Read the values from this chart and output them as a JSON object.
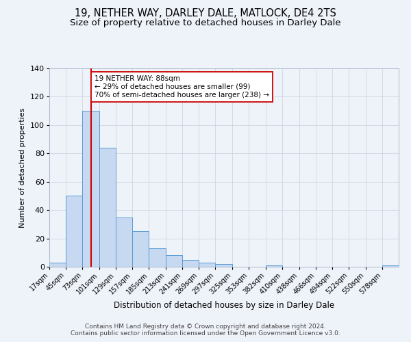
{
  "title": "19, NETHER WAY, DARLEY DALE, MATLOCK, DE4 2TS",
  "subtitle": "Size of property relative to detached houses in Darley Dale",
  "xlabel": "Distribution of detached houses by size in Darley Dale",
  "ylabel": "Number of detached properties",
  "bin_labels": [
    "17sqm",
    "45sqm",
    "73sqm",
    "101sqm",
    "129sqm",
    "157sqm",
    "185sqm",
    "213sqm",
    "241sqm",
    "269sqm",
    "297sqm",
    "325sqm",
    "353sqm",
    "382sqm",
    "410sqm",
    "438sqm",
    "466sqm",
    "494sqm",
    "522sqm",
    "550sqm",
    "578sqm"
  ],
  "bin_edges": [
    17,
    45,
    73,
    101,
    129,
    157,
    185,
    213,
    241,
    269,
    297,
    325,
    353,
    382,
    410,
    438,
    466,
    494,
    522,
    550,
    578
  ],
  "bar_heights": [
    3,
    50,
    110,
    84,
    35,
    25,
    13,
    8,
    5,
    3,
    2,
    0,
    0,
    1,
    0,
    0,
    0,
    0,
    0,
    0,
    1
  ],
  "bar_color": "#c6d9f0",
  "bar_edge_color": "#5b9bd5",
  "vline_x": 88,
  "vline_color": "#cc0000",
  "annotation_line1": "19 NETHER WAY: 88sqm",
  "annotation_line2": "← 29% of detached houses are smaller (99)",
  "annotation_line3": "70% of semi-detached houses are larger (238) →",
  "annotation_box_color": "#ffffff",
  "annotation_box_edge": "#cc0000",
  "ylim": [
    0,
    140
  ],
  "background_color": "#eef2f9",
  "plot_bg_color": "#eef2f9",
  "grid_color": "#c8d0de",
  "footer_text": "Contains HM Land Registry data © Crown copyright and database right 2024.\nContains public sector information licensed under the Open Government Licence v3.0.",
  "title_fontsize": 10.5,
  "subtitle_fontsize": 9.5,
  "xlabel_fontsize": 8.5,
  "ylabel_fontsize": 8,
  "tick_fontsize": 7,
  "footer_fontsize": 6.5,
  "annot_fontsize": 7.5
}
